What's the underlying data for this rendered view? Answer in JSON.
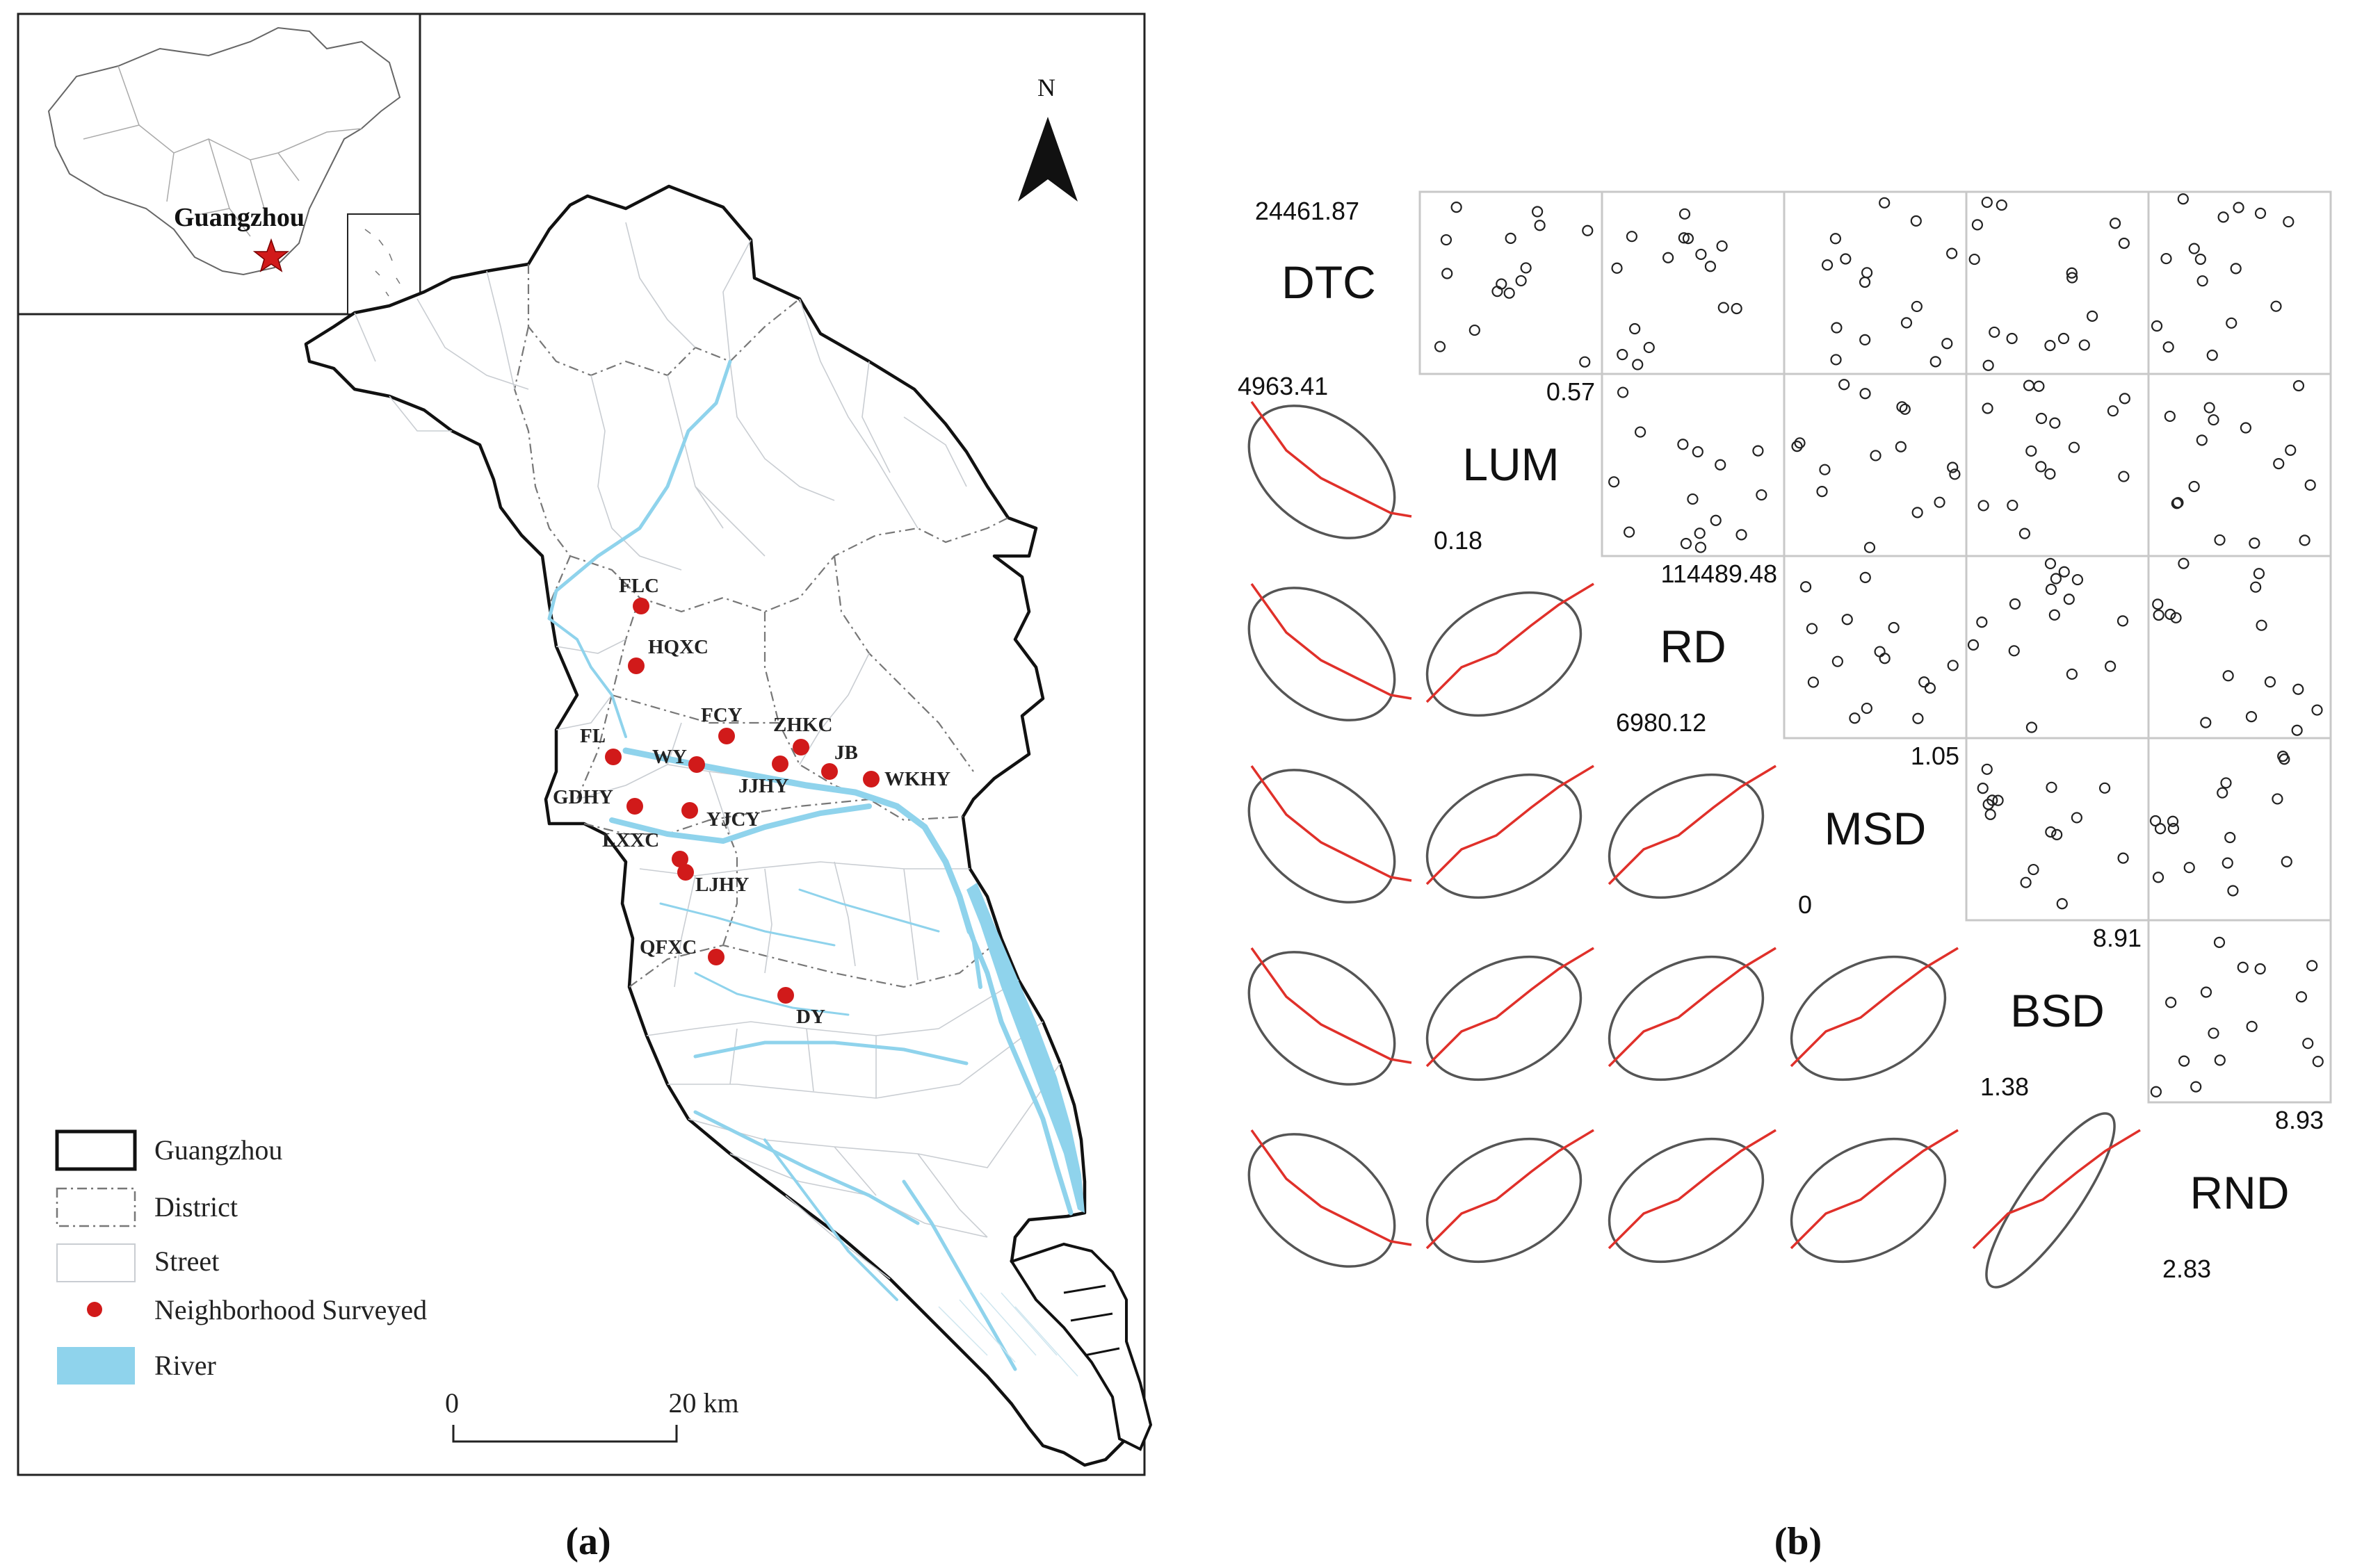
{
  "panel_a": {
    "caption": "(a)",
    "inset": {
      "label": "Guangzhou"
    },
    "north": {
      "label": "N"
    },
    "neighborhoods": [
      {
        "name": "FLC"
      },
      {
        "name": "HQXC"
      },
      {
        "name": "FCY"
      },
      {
        "name": "ZHKC"
      },
      {
        "name": "FL"
      },
      {
        "name": "WY"
      },
      {
        "name": "JB"
      },
      {
        "name": "JJHY"
      },
      {
        "name": "WKHY"
      },
      {
        "name": "GDHY"
      },
      {
        "name": "YJCY"
      },
      {
        "name": "LXXC"
      },
      {
        "name": "LJHY"
      },
      {
        "name": "QFXC"
      },
      {
        "name": "DY"
      }
    ],
    "legend": {
      "items": [
        {
          "label": "Guangzhou"
        },
        {
          "label": "District"
        },
        {
          "label": "Street"
        },
        {
          "label": "Neighborhood Surveyed"
        },
        {
          "label": "River"
        }
      ]
    },
    "scalebar": {
      "start": "0",
      "end": "20 km"
    },
    "colors": {
      "river": "#8fd3ec",
      "point": "#d11a1a",
      "boundary": "#111111",
      "street": "#c9cdd2"
    }
  },
  "panel_b": {
    "caption": "(b)",
    "chart_data": {
      "type": "scatter",
      "variables": [
        {
          "name": "DTC",
          "max": "24461.87",
          "min": "4963.41"
        },
        {
          "name": "LUM",
          "max": "0.57",
          "min": "0.18"
        },
        {
          "name": "RD",
          "max": "114489.48",
          "min": "6980.12"
        },
        {
          "name": "MSD",
          "max": "1.05",
          "min": "0"
        },
        {
          "name": "BSD",
          "max": "8.91",
          "min": "1.38"
        },
        {
          "name": "RND",
          "max": "8.93",
          "min": "2.83"
        }
      ],
      "colors": {
        "points": "#222222",
        "fit": "#e0302a",
        "ellipse": "#555555"
      }
    }
  }
}
